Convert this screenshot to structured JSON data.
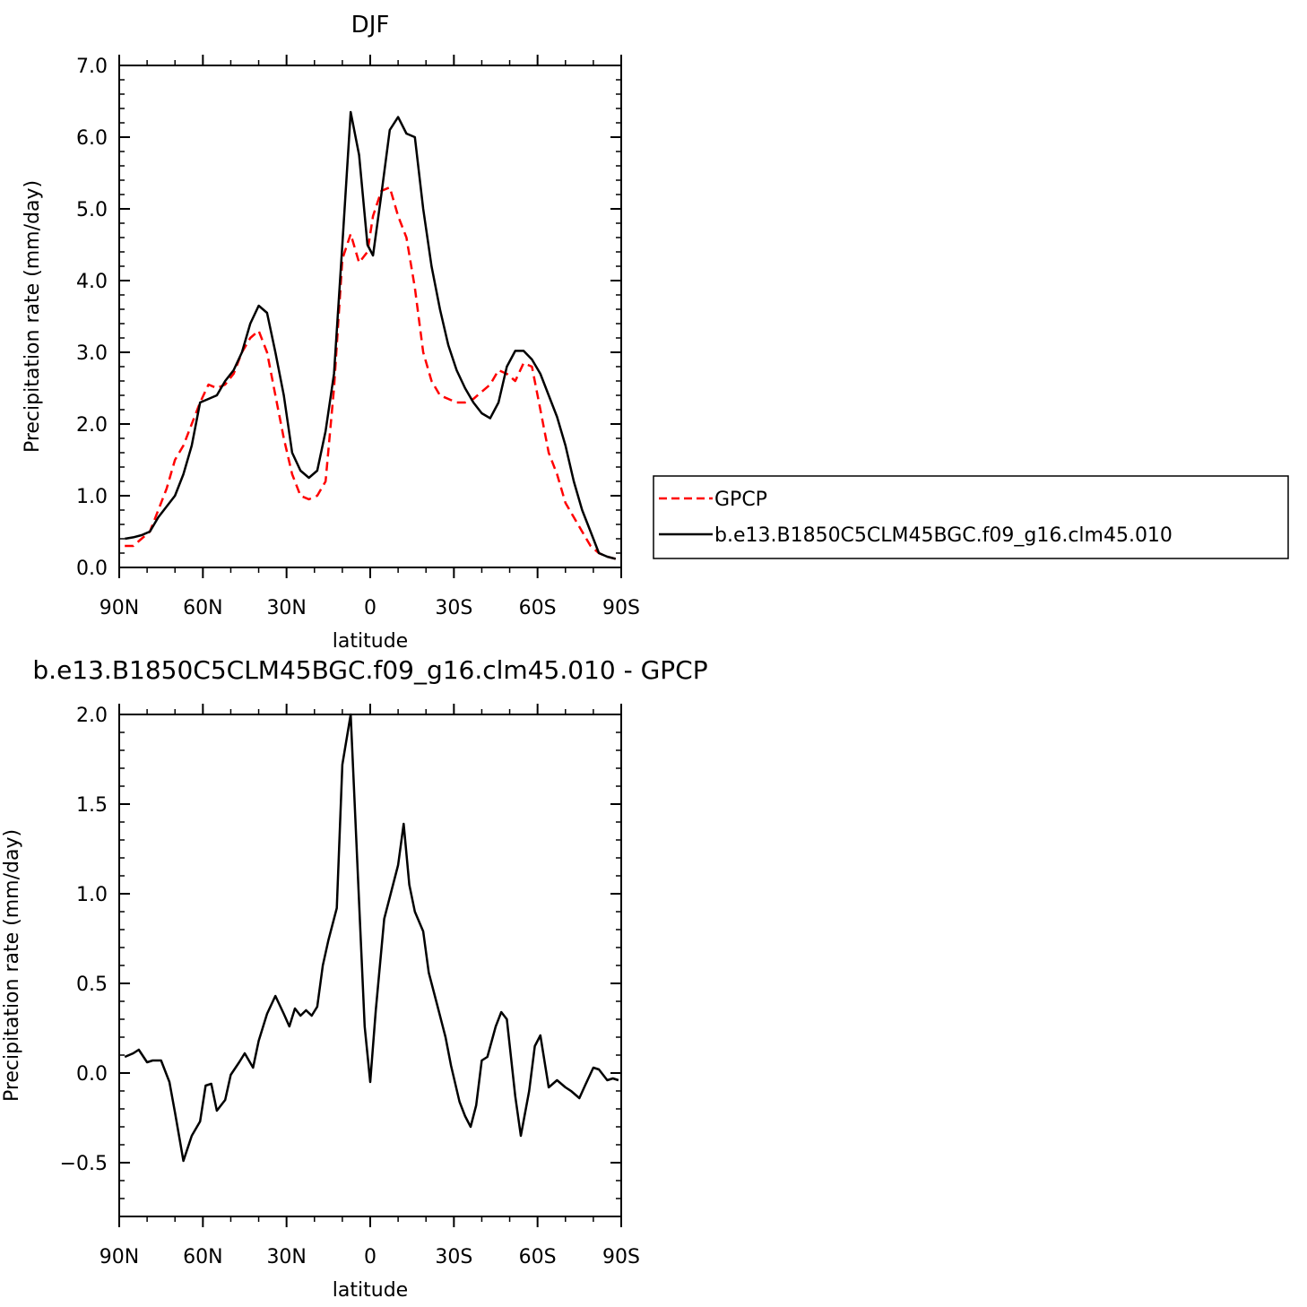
{
  "chart_data": [
    {
      "type": "line",
      "title": "DJF",
      "xlabel": "latitude",
      "ylabel": "Precipitation rate (mm/day)",
      "xlim": [
        90,
        -90
      ],
      "ylim": [
        0,
        7
      ],
      "xticks": [
        {
          "value": 90,
          "label": "90N"
        },
        {
          "value": 60,
          "label": "60N"
        },
        {
          "value": 30,
          "label": "30N"
        },
        {
          "value": 0,
          "label": "0"
        },
        {
          "value": -30,
          "label": "30S"
        },
        {
          "value": -60,
          "label": "60S"
        },
        {
          "value": -90,
          "label": "90S"
        }
      ],
      "yticks": [
        {
          "value": 0,
          "label": "0.0"
        },
        {
          "value": 1,
          "label": "1.0"
        },
        {
          "value": 2,
          "label": "2.0"
        },
        {
          "value": 3,
          "label": "3.0"
        },
        {
          "value": 4,
          "label": "4.0"
        },
        {
          "value": 5,
          "label": "5.0"
        },
        {
          "value": 6,
          "label": "6.0"
        },
        {
          "value": 7,
          "label": "7.0"
        }
      ],
      "legend_position": "right",
      "series": [
        {
          "name": "GPCP",
          "color": "#ff0000",
          "dash": "dashed",
          "x": [
            88,
            85,
            82,
            79,
            76,
            73,
            70,
            67,
            64,
            61,
            58,
            55,
            52,
            49,
            46,
            43,
            40,
            37,
            34,
            31,
            28,
            25,
            22,
            19,
            16,
            13,
            10,
            7,
            4,
            1,
            -1,
            -4,
            -7,
            -10,
            -13,
            -16,
            -19,
            -22,
            -25,
            -28,
            -31,
            -34,
            -37,
            -40,
            -43,
            -46,
            -49,
            -52,
            -55,
            -58,
            -61,
            -64,
            -67,
            -70,
            -73,
            -76,
            -79,
            -82,
            -85,
            -88
          ],
          "y": [
            0.3,
            0.3,
            0.4,
            0.5,
            0.8,
            1.1,
            1.5,
            1.7,
            2.0,
            2.3,
            2.55,
            2.5,
            2.55,
            2.7,
            3.0,
            3.2,
            3.3,
            3.0,
            2.4,
            1.8,
            1.3,
            1.0,
            0.95,
            1.0,
            1.2,
            2.5,
            4.3,
            4.65,
            4.25,
            4.4,
            4.9,
            5.25,
            5.3,
            4.9,
            4.6,
            3.9,
            3.0,
            2.6,
            2.4,
            2.35,
            2.3,
            2.3,
            2.35,
            2.45,
            2.55,
            2.75,
            2.7,
            2.6,
            2.85,
            2.8,
            2.2,
            1.6,
            1.3,
            0.9,
            0.7,
            0.5,
            0.3,
            0.2,
            0.15,
            0.12
          ]
        },
        {
          "name": "b.e13.B1850C5CLM45BGC.f09_g16.clm45.010",
          "color": "#000000",
          "dash": "solid",
          "x": [
            88,
            85,
            82,
            79,
            76,
            73,
            70,
            67,
            64,
            61,
            58,
            55,
            52,
            49,
            46,
            43,
            40,
            37,
            34,
            31,
            28,
            25,
            22,
            19,
            16,
            13,
            10,
            7,
            4,
            1,
            -1,
            -4,
            -7,
            -10,
            -13,
            -16,
            -19,
            -22,
            -25,
            -28,
            -31,
            -34,
            -37,
            -40,
            -43,
            -46,
            -49,
            -52,
            -55,
            -58,
            -61,
            -64,
            -67,
            -70,
            -73,
            -76,
            -79,
            -82,
            -85,
            -88
          ],
          "y": [
            0.4,
            0.42,
            0.45,
            0.5,
            0.7,
            0.85,
            1.0,
            1.3,
            1.7,
            2.3,
            2.35,
            2.4,
            2.6,
            2.75,
            3.0,
            3.4,
            3.65,
            3.55,
            3.0,
            2.4,
            1.6,
            1.35,
            1.25,
            1.35,
            1.9,
            2.7,
            4.5,
            6.35,
            5.75,
            4.5,
            4.35,
            5.2,
            6.1,
            6.28,
            6.05,
            6.0,
            5.0,
            4.2,
            3.6,
            3.1,
            2.75,
            2.5,
            2.3,
            2.15,
            2.08,
            2.3,
            2.8,
            3.02,
            3.02,
            2.9,
            2.7,
            2.4,
            2.1,
            1.7,
            1.2,
            0.8,
            0.5,
            0.2,
            0.15,
            0.12
          ]
        }
      ]
    },
    {
      "type": "line",
      "title": "b.e13.B1850C5CLM45BGC.f09_g16.clm45.010 - GPCP",
      "xlabel": "latitude",
      "ylabel": "Precipitation rate (mm/day)",
      "xlim": [
        90,
        -90
      ],
      "ylim": [
        -0.8,
        2.0
      ],
      "xticks": [
        {
          "value": 90,
          "label": "90N"
        },
        {
          "value": 60,
          "label": "60N"
        },
        {
          "value": 30,
          "label": "30N"
        },
        {
          "value": 0,
          "label": "0"
        },
        {
          "value": -30,
          "label": "30S"
        },
        {
          "value": -60,
          "label": "60S"
        },
        {
          "value": -90,
          "label": "90S"
        }
      ],
      "yticks": [
        {
          "value": -0.5,
          "label": "−0.5"
        },
        {
          "value": 0,
          "label": "0.0"
        },
        {
          "value": 0.5,
          "label": "0.5"
        },
        {
          "value": 1.0,
          "label": "1.0"
        },
        {
          "value": 1.5,
          "label": "1.5"
        },
        {
          "value": 2.0,
          "label": "2.0"
        }
      ],
      "series": [
        {
          "color": "#000000",
          "dash": "solid",
          "x": [
            88,
            85,
            83,
            80,
            78,
            75,
            72,
            70,
            67,
            64,
            61,
            59,
            57,
            55,
            52,
            50,
            47,
            45,
            42,
            40,
            37,
            34,
            31,
            29,
            27,
            25,
            23,
            21,
            19,
            17,
            15,
            12,
            10,
            7,
            4,
            2,
            0,
            -2,
            -5,
            -7,
            -10,
            -12,
            -14,
            -16,
            -19,
            -21,
            -24,
            -27,
            -29,
            -32,
            -34,
            -36,
            -38,
            -40,
            -42,
            -45,
            -47,
            -49,
            -52,
            -54,
            -57,
            -59,
            -61,
            -64,
            -67,
            -70,
            -72,
            -75,
            -77,
            -80,
            -82,
            -85,
            -87,
            -89
          ],
          "y": [
            0.09,
            0.11,
            0.13,
            0.06,
            0.07,
            0.07,
            -0.05,
            -0.22,
            -0.49,
            -0.35,
            -0.27,
            -0.07,
            -0.06,
            -0.21,
            -0.15,
            -0.01,
            0.06,
            0.11,
            0.03,
            0.18,
            0.33,
            0.43,
            0.33,
            0.26,
            0.36,
            0.32,
            0.35,
            0.32,
            0.37,
            0.6,
            0.74,
            0.92,
            1.72,
            2.0,
            0.95,
            0.26,
            -0.05,
            0.35,
            0.86,
            0.98,
            1.16,
            1.39,
            1.05,
            0.9,
            0.79,
            0.56,
            0.38,
            0.2,
            0.04,
            -0.16,
            -0.24,
            -0.3,
            -0.18,
            0.07,
            0.09,
            0.26,
            0.34,
            0.3,
            -0.13,
            -0.35,
            -0.1,
            0.15,
            0.21,
            -0.08,
            -0.04,
            -0.08,
            -0.1,
            -0.14,
            -0.07,
            0.03,
            0.02,
            -0.04,
            -0.03,
            -0.04
          ]
        }
      ]
    }
  ]
}
